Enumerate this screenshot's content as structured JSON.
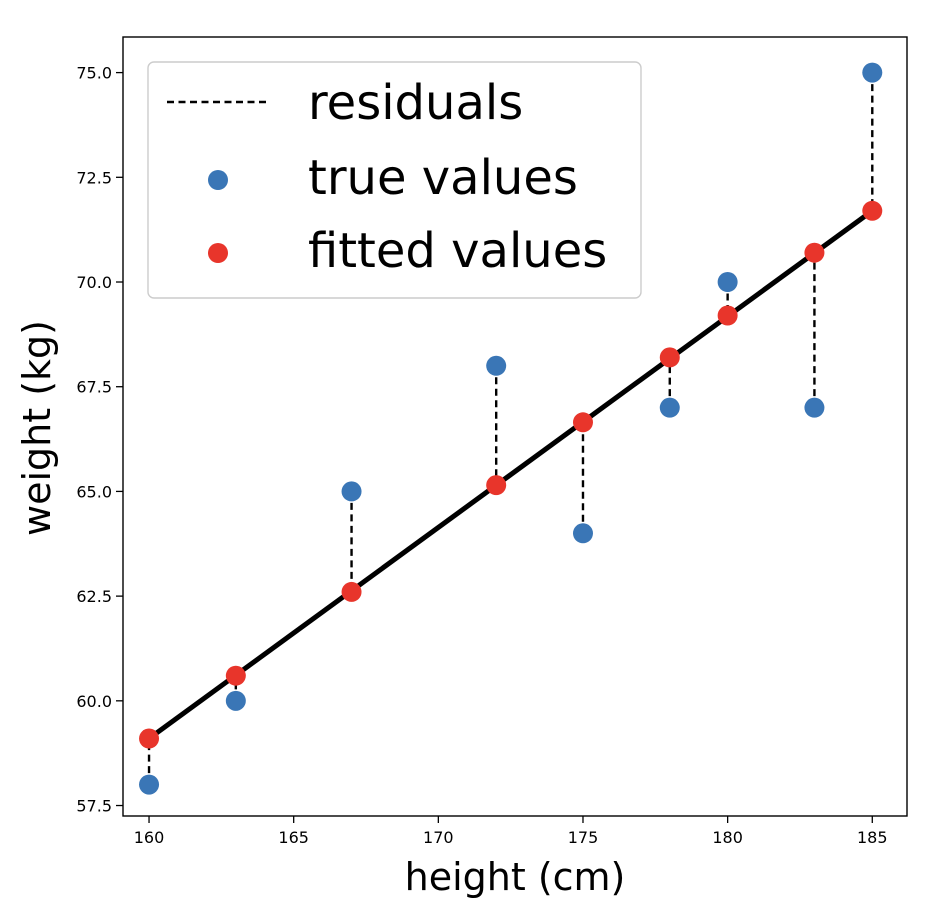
{
  "chart_data": {
    "type": "scatter",
    "xlabel": "height (cm)",
    "ylabel": "weight (kg)",
    "xlim": [
      159.1,
      186.2
    ],
    "ylim": [
      57.25,
      75.85
    ],
    "xticks": [
      160,
      165,
      170,
      175,
      180,
      185
    ],
    "yticks": [
      57.5,
      60.0,
      62.5,
      65.0,
      67.5,
      70.0,
      72.5,
      75.0
    ],
    "grid": false,
    "legend": {
      "placement": "top-left",
      "entries": [
        {
          "label": "residuals",
          "marker": "dashed-line",
          "color": "#000000"
        },
        {
          "label": "true values",
          "marker": "circle",
          "color": "#3a76b6"
        },
        {
          "label": "fitted values",
          "marker": "circle",
          "color": "#e8352b"
        }
      ]
    },
    "x": [
      160,
      163,
      167,
      172,
      175,
      178,
      180,
      183,
      185
    ],
    "series": [
      {
        "name": "true values",
        "color": "#3a76b6",
        "values": [
          58.0,
          60.0,
          65.0,
          68.0,
          64.0,
          67.0,
          70.0,
          67.0,
          75.0
        ]
      },
      {
        "name": "fitted values",
        "color": "#e8352b",
        "values": [
          59.1,
          60.6,
          62.6,
          65.15,
          66.65,
          68.2,
          69.2,
          70.7,
          71.7
        ]
      }
    ],
    "fit_line": {
      "color": "#000000",
      "x": [
        160,
        185
      ],
      "y": [
        59.1,
        71.7
      ]
    }
  }
}
